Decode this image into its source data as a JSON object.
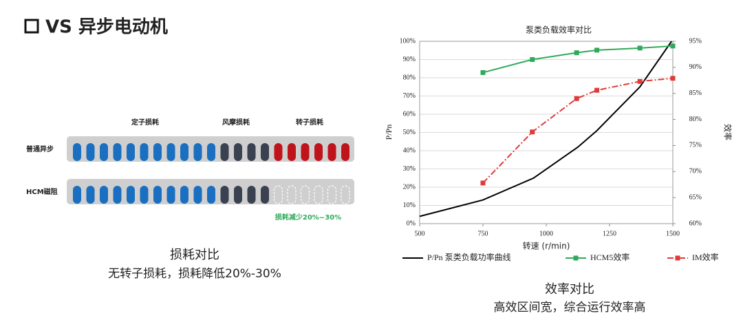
{
  "header": {
    "title": "VS 异步电动机"
  },
  "loss_diagram": {
    "column_labels": [
      "定子损耗",
      "风摩损耗",
      "转子损耗"
    ],
    "row_labels": [
      "普通异步",
      "HCM磁阻"
    ],
    "note": "损耗减少20%~30%",
    "caption": "损耗对比",
    "subcaption": "无转子损耗，损耗降低20%-30%"
  },
  "chart_data": {
    "type": "line",
    "title": "泵类负载效率对比",
    "x_label": "转速 (r/min)",
    "y_label": "P/Pn",
    "y2_label": "效率",
    "xlim": [
      500,
      1500
    ],
    "xticks": [
      500,
      750,
      1000,
      1250,
      1500
    ],
    "ylim": [
      0,
      100
    ],
    "yticks": [
      {
        "value": 0,
        "label": "0%"
      },
      {
        "value": 10,
        "label": "10%"
      },
      {
        "value": 20,
        "label": "20%"
      },
      {
        "value": 30,
        "label": "30%"
      },
      {
        "value": 40,
        "label": "40%"
      },
      {
        "value": 50,
        "label": "50%"
      },
      {
        "value": 60,
        "label": "60%"
      },
      {
        "value": 70,
        "label": "70%"
      },
      {
        "value": 80,
        "label": "80%"
      },
      {
        "value": 90,
        "label": "90%"
      },
      {
        "value": 100,
        "label": "100%"
      }
    ],
    "y2lim": [
      60,
      95
    ],
    "y2ticks": [
      {
        "value": 60,
        "label": "60%"
      },
      {
        "value": 65,
        "label": "65%"
      },
      {
        "value": 70,
        "label": "70%"
      },
      {
        "value": 75,
        "label": "75%"
      },
      {
        "value": 80,
        "label": "80%"
      },
      {
        "value": 85,
        "label": "85%"
      },
      {
        "value": 90,
        "label": "90%"
      },
      {
        "value": 95,
        "label": "95%"
      }
    ],
    "grid": true,
    "series": [
      {
        "name": "P/Pn 泵类负载功率曲线",
        "color": "#000000",
        "x": [
          500,
          750,
          950,
          1125,
          1200,
          1370,
          1495
        ],
        "values": [
          4,
          13,
          25,
          42,
          51,
          75,
          100
        ]
      },
      {
        "name": "HCM5效率",
        "color": "#2eaa5a",
        "axis": "y2",
        "x": [
          750,
          945,
          1120,
          1200,
          1370,
          1500
        ],
        "values": [
          89.0,
          91.5,
          92.8,
          93.3,
          93.7,
          94.1
        ]
      },
      {
        "name": "IM效率",
        "color": "#e03a3a",
        "axis": "y2",
        "x": [
          750,
          945,
          1120,
          1200,
          1370,
          1500
        ],
        "values": [
          67.8,
          77.6,
          84.0,
          85.6,
          87.3,
          87.9
        ]
      }
    ]
  },
  "chart_caption": {
    "caption": "效率对比",
    "subcaption": "高效区间宽，综合运行效率高"
  }
}
